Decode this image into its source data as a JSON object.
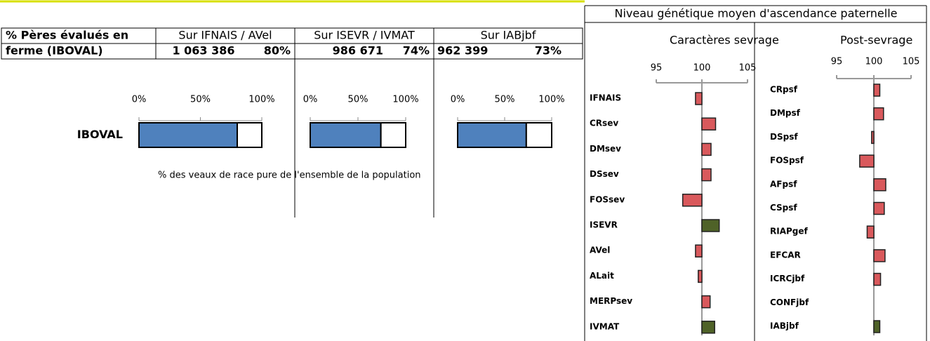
{
  "table": {
    "header": [
      "% Pères évalués en",
      "Sur IFNAIS / AVel",
      "Sur ISEVR / IVMAT",
      "Sur IABjbf"
    ],
    "row": [
      "ferme (IBOVAL)",
      "1 063 386",
      "80%",
      "986 671",
      "74%",
      "962 399",
      "73%"
    ]
  },
  "caption": "% des veaux de race pure de l'ensemble de la population",
  "panel": {
    "title": "Niveau génétique moyen d'ascendance paternelle"
  },
  "chart_data": [
    {
      "type": "stacked_hbar",
      "categories": [
        "IBOVAL"
      ],
      "series": [
        {
          "color": "#4f81bd",
          "values": [
            80
          ]
        },
        {
          "color": "#ffffff",
          "values": [
            20
          ]
        }
      ],
      "xlim": [
        0,
        100
      ],
      "xticks": [
        {
          "value": 0,
          "label": "0%"
        },
        {
          "value": 50,
          "label": "50%"
        },
        {
          "value": 100,
          "label": "100%"
        }
      ]
    },
    {
      "type": "stacked_hbar",
      "categories": [
        null
      ],
      "series": [
        {
          "color": "#4f81bd",
          "values": [
            74
          ]
        },
        {
          "color": "#ffffff",
          "values": [
            26
          ]
        }
      ],
      "xlim": [
        0,
        100
      ],
      "xticks": [
        {
          "value": 0,
          "label": "0%"
        },
        {
          "value": 50,
          "label": "50%"
        },
        {
          "value": 100,
          "label": "100%"
        }
      ]
    },
    {
      "type": "stacked_hbar",
      "categories": [
        null
      ],
      "series": [
        {
          "color": "#4f81bd",
          "values": [
            73
          ]
        },
        {
          "color": "#ffffff",
          "values": [
            27
          ]
        }
      ],
      "xlim": [
        0,
        100
      ],
      "xticks": [
        {
          "value": 0,
          "label": "0%"
        },
        {
          "value": 50,
          "label": "50%"
        },
        {
          "value": 100,
          "label": "100%"
        }
      ]
    },
    {
      "type": "hbar",
      "title": "Caractères sevrage",
      "categories": [
        "IFNAIS",
        "CRsev",
        "DMsev",
        "DSsev",
        "FOSsev",
        "ISEVR",
        "AVel",
        "ALait",
        "MERPsev",
        "IVMAT"
      ],
      "values": [
        99.3,
        101.5,
        101,
        101,
        97.9,
        101.9,
        99.3,
        99.6,
        100.9,
        101.4
      ],
      "colors": [
        "#d9595c",
        "#d9595c",
        "#d9595c",
        "#d9595c",
        "#d9595c",
        "#4f6228",
        "#d9595c",
        "#d9595c",
        "#d9595c",
        "#4f6228"
      ],
      "xlim": [
        95,
        105
      ],
      "xticks": [
        95,
        100,
        105
      ]
    },
    {
      "type": "hbar",
      "title": "Post-sevrage",
      "categories": [
        "CRpsf",
        "DMpsf",
        "DSpsf",
        "FOSpsf",
        "AFpsf",
        "CSpsf",
        "RIAPgef",
        "EFCAR",
        "ICRCjbf",
        "CONFjbf",
        "IABjbf"
      ],
      "values": [
        100.8,
        101.3,
        99.7,
        98.1,
        101.6,
        101.4,
        99.1,
        101.5,
        100.9,
        100,
        100.8
      ],
      "colors": [
        "#d9595c",
        "#d9595c",
        "#d9595c",
        "#d9595c",
        "#d9595c",
        "#d9595c",
        "#d9595c",
        "#d9595c",
        "#d9595c",
        "#d9595c",
        "#4f6228"
      ],
      "xlim": [
        95,
        105
      ],
      "xticks": [
        95,
        100,
        105
      ]
    }
  ]
}
